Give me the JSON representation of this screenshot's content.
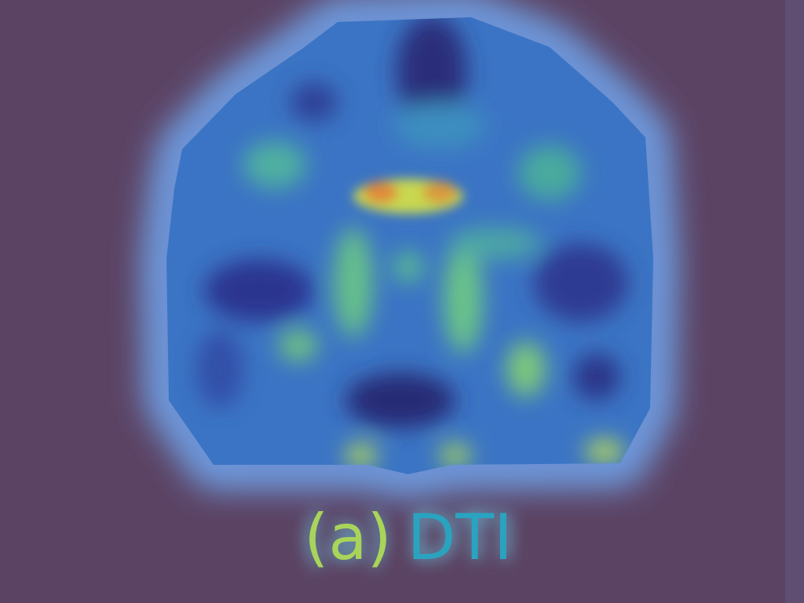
{
  "caption": {
    "label": "(a)",
    "text": "DTI"
  }
}
